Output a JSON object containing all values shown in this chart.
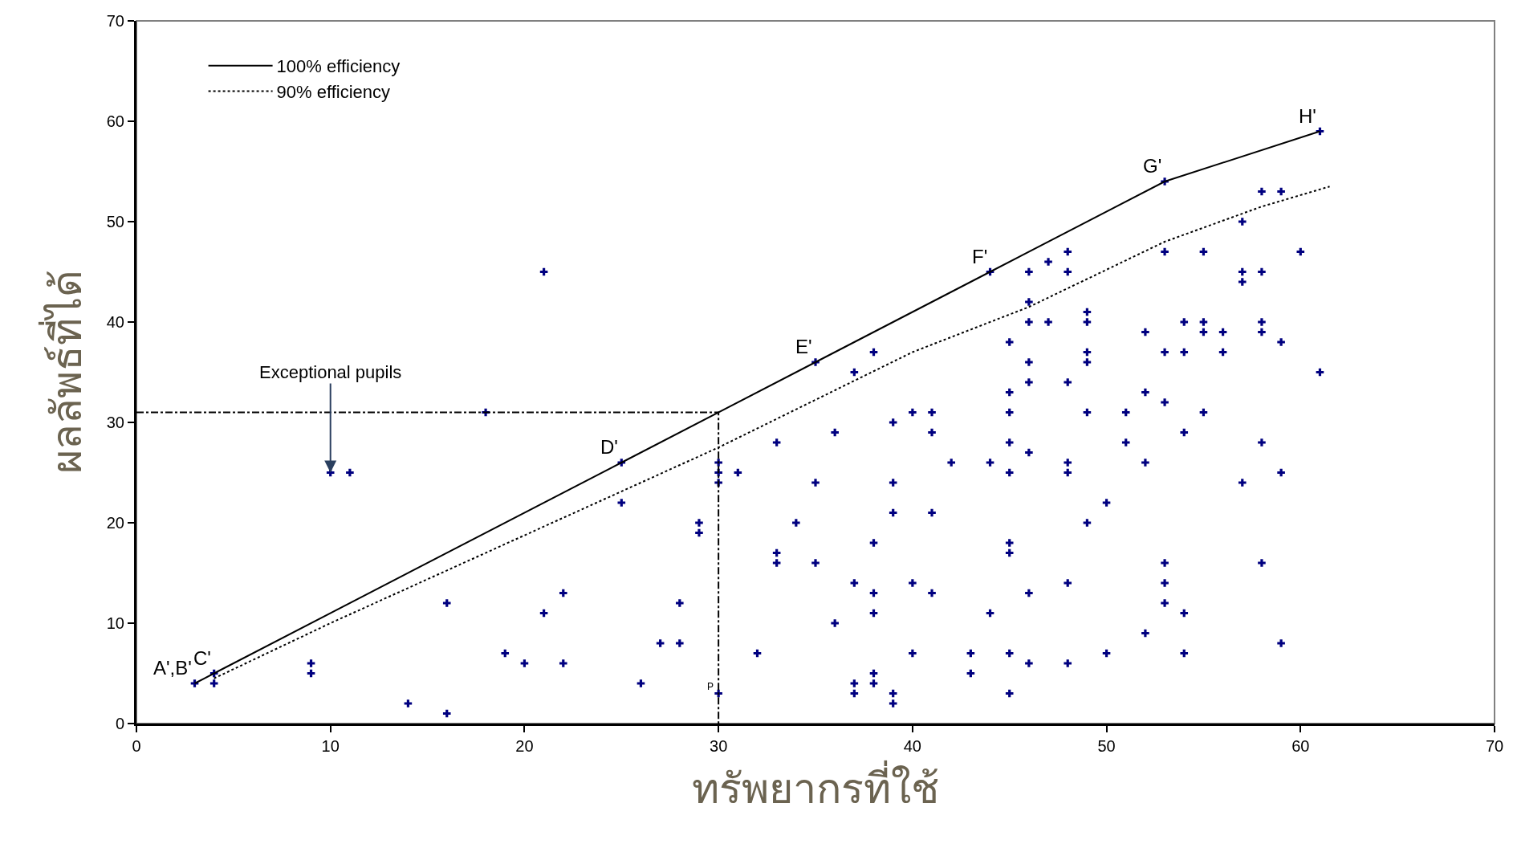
{
  "chart_data": {
    "type": "scatter",
    "xlabel": "ทรัพยากรที่ใช้",
    "ylabel": "ผลลัพธ์ที่ได้",
    "xlim": [
      0,
      70
    ],
    "ylim": [
      0,
      70
    ],
    "xticks": [
      0,
      10,
      20,
      30,
      40,
      50,
      60,
      70
    ],
    "yticks": [
      0,
      10,
      20,
      30,
      40,
      50,
      60,
      70
    ],
    "grid": false,
    "legend": "top left",
    "series": [
      {
        "color": "#000080",
        "marker": "cross",
        "x": [
          3,
          4,
          4,
          9,
          9,
          10,
          11,
          14,
          16,
          16,
          18,
          19,
          20,
          21,
          21,
          22,
          22,
          25,
          25,
          26,
          27,
          28,
          28,
          29,
          29,
          30,
          30,
          30,
          30,
          31,
          32,
          33,
          33,
          33,
          34,
          35,
          35,
          35,
          36,
          36,
          37,
          37,
          37,
          37,
          38,
          38,
          38,
          38,
          38,
          38,
          39,
          39,
          39,
          39,
          39,
          40,
          40,
          40,
          41,
          41,
          41,
          41,
          42,
          43,
          43,
          44,
          44,
          44,
          45,
          45,
          45,
          45,
          45,
          45,
          45,
          45,
          45,
          46,
          46,
          46,
          46,
          46,
          46,
          46,
          46,
          47,
          47,
          48,
          48,
          48,
          48,
          48,
          48,
          48,
          49,
          49,
          49,
          49,
          49,
          49,
          50,
          50,
          51,
          51,
          52,
          52,
          52,
          52,
          53,
          53,
          53,
          53,
          53,
          53,
          53,
          54,
          54,
          54,
          54,
          54,
          55,
          55,
          55,
          55,
          56,
          56,
          57,
          57,
          57,
          57,
          58,
          58,
          58,
          58,
          58,
          58,
          59,
          59,
          59,
          59,
          60,
          61,
          61
        ],
        "values": [
          4,
          4,
          5,
          6,
          5,
          25,
          25,
          2,
          1,
          12,
          31,
          7,
          6,
          11,
          45,
          13,
          6,
          26,
          22,
          4,
          8,
          8,
          12,
          20,
          19,
          26,
          25,
          24,
          3,
          25,
          7,
          28,
          17,
          16,
          20,
          36,
          24,
          16,
          29,
          10,
          35,
          14,
          4,
          3,
          37,
          18,
          13,
          11,
          5,
          4,
          30,
          24,
          21,
          3,
          2,
          31,
          14,
          7,
          31,
          29,
          21,
          13,
          26,
          7,
          5,
          45,
          26,
          11,
          38,
          33,
          31,
          28,
          25,
          18,
          17,
          7,
          3,
          45,
          42,
          40,
          36,
          34,
          27,
          13,
          6,
          46,
          40,
          47,
          45,
          34,
          26,
          25,
          14,
          6,
          41,
          40,
          37,
          36,
          31,
          20,
          22,
          7,
          31,
          28,
          39,
          33,
          26,
          9,
          54,
          47,
          37,
          32,
          16,
          14,
          12,
          40,
          37,
          29,
          11,
          7,
          47,
          40,
          39,
          31,
          39,
          37,
          50,
          45,
          44,
          24,
          53,
          45,
          40,
          39,
          28,
          16,
          53,
          38,
          25,
          8,
          47,
          59,
          35
        ]
      },
      {
        "type": "line",
        "name": "100% efficiency",
        "color": "#000000",
        "line_style": "solid",
        "marker": "none",
        "x": [
          3,
          4,
          25,
          35,
          44,
          53,
          61
        ],
        "values": [
          4,
          5,
          26,
          36,
          45,
          54,
          59
        ]
      },
      {
        "type": "line",
        "name": "90% efficiency",
        "color": "#000000",
        "line_style": "dotted",
        "marker": "none",
        "x": [
          4,
          10,
          30,
          40,
          46,
          53,
          58,
          61.5
        ],
        "values": [
          4.5,
          10,
          27.5,
          37,
          41.5,
          48,
          51.5,
          53.5
        ]
      },
      {
        "type": "line",
        "color": "#000000",
        "line_style": "dashdot",
        "marker": "none",
        "x": [
          0,
          30,
          30
        ],
        "values": [
          31,
          31,
          0
        ]
      }
    ],
    "annotations": [
      {
        "text": "A',B'",
        "x": 3,
        "y": 4
      },
      {
        "text": "C'",
        "x": 4,
        "y": 5
      },
      {
        "text": "D'",
        "x": 25,
        "y": 26
      },
      {
        "text": "E'",
        "x": 35,
        "y": 36
      },
      {
        "text": "F'",
        "x": 44,
        "y": 45
      },
      {
        "text": "G'",
        "x": 53,
        "y": 54
      },
      {
        "text": "H'",
        "x": 61,
        "y": 59
      },
      {
        "text": "P",
        "x": 30,
        "y": 3
      },
      {
        "text": "Exceptional pupils",
        "x": 10,
        "y": 25
      }
    ]
  }
}
